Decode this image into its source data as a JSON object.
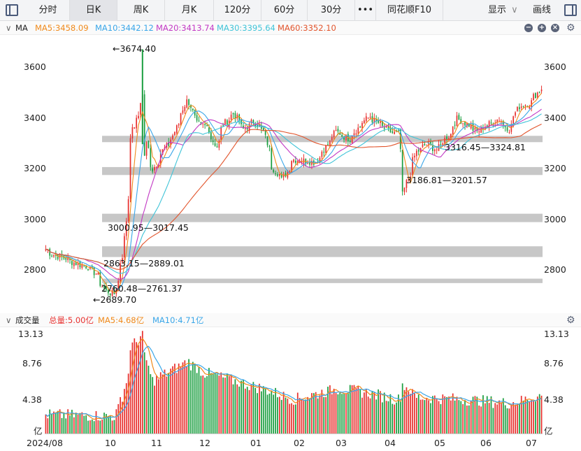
{
  "toolbar": {
    "tabs": [
      "分时",
      "日K",
      "周K",
      "月K",
      "120分",
      "60分",
      "30分",
      "•••",
      "同花顺F10"
    ],
    "active_tab": "日K",
    "display_label": "显示",
    "draw_label": "画线"
  },
  "ma_header": {
    "name": "MA",
    "ma5": "MA5:3458.09",
    "ma10": "MA10:3442.12",
    "ma20": "MA20:3413.74",
    "ma30": "MA30:3395.64",
    "ma60": "MA60:3352.10"
  },
  "vol_header": {
    "name": "成交量",
    "total": "总量:5.00亿",
    "ma5": "MA5:4.68亿",
    "ma10": "MA10:4.71亿"
  },
  "price_axis": {
    "ticks": [
      "3600",
      "3400",
      "3200",
      "3000",
      "2800"
    ]
  },
  "volume_axis": {
    "ticks": [
      "13.13",
      "8.76",
      "4.38",
      "亿"
    ]
  },
  "date_axis": {
    "labels": [
      "2024/08",
      "10",
      "11",
      "12",
      "01",
      "02",
      "03",
      "04",
      "05",
      "06",
      "07"
    ]
  },
  "annotations": {
    "high": "3674.40",
    "low": "2689.70",
    "gap1": "3316.45—3324.81",
    "gap2": "3186.81—3201.57",
    "gap3": "3000.95—3017.45",
    "gap4": "2863.15—2889.01",
    "gap5": "2760.48—2761.37"
  },
  "colors": {
    "up": "#e8312f",
    "down": "#1a9e3f",
    "ma5": "#f08a1c",
    "ma10": "#3aa6e8",
    "ma20": "#c238c4",
    "ma30": "#40c4d8",
    "ma60": "#e2552d",
    "vol_total": "#e8312f",
    "gap_band": "#c7c7c7"
  },
  "chart_data": [
    {
      "type": "candlestick",
      "title": "",
      "ylim": [
        2650,
        3700
      ],
      "gaps": [
        [
          3316.45,
          3324.81
        ],
        [
          3186.81,
          3201.57
        ],
        [
          3000.95,
          3017.45
        ],
        [
          2863.15,
          2889.01
        ],
        [
          2760.48,
          2761.37
        ]
      ],
      "high_point": 3674.4,
      "low_point": 2689.7,
      "moving_averages_last": {
        "MA5": 3458.09,
        "MA10": 3442.12,
        "MA20": 3413.74,
        "MA30": 3395.64,
        "MA60": 3352.1
      },
      "close_anchors": [
        [
          "2024-08-01",
          2886
        ],
        [
          "2024-08-08",
          2860
        ],
        [
          "2024-08-15",
          2850
        ],
        [
          "2024-08-22",
          2830
        ],
        [
          "2024-08-29",
          2820
        ],
        [
          "2024-09-05",
          2790
        ],
        [
          "2024-09-12",
          2720
        ],
        [
          "2024-09-18",
          2710
        ],
        [
          "2024-09-24",
          2860
        ],
        [
          "2024-09-26",
          3000
        ],
        [
          "2024-09-27",
          3087
        ],
        [
          "2024-09-30",
          3336
        ],
        [
          "2024-10-08",
          3489
        ],
        [
          "2024-10-09",
          3258
        ],
        [
          "2024-10-10",
          3301
        ],
        [
          "2024-10-15",
          3200
        ],
        [
          "2024-10-21",
          3268
        ],
        [
          "2024-10-28",
          3320
        ],
        [
          "2024-11-07",
          3470
        ],
        [
          "2024-11-11",
          3450
        ],
        [
          "2024-11-14",
          3380
        ],
        [
          "2024-11-21",
          3370
        ],
        [
          "2024-11-28",
          3290
        ],
        [
          "2024-12-03",
          3380
        ],
        [
          "2024-12-10",
          3420
        ],
        [
          "2024-12-17",
          3360
        ],
        [
          "2024-12-24",
          3390
        ],
        [
          "2024-12-31",
          3350
        ],
        [
          "2025-01-06",
          3210
        ],
        [
          "2025-01-13",
          3160
        ],
        [
          "2025-01-20",
          3240
        ],
        [
          "2025-02-05",
          3230
        ],
        [
          "2025-02-12",
          3290
        ],
        [
          "2025-02-19",
          3350
        ],
        [
          "2025-02-28",
          3320
        ],
        [
          "2025-03-07",
          3370
        ],
        [
          "2025-03-14",
          3410
        ],
        [
          "2025-03-21",
          3380
        ],
        [
          "2025-03-28",
          3350
        ],
        [
          "2025-04-03",
          3340
        ],
        [
          "2025-04-07",
          3100
        ],
        [
          "2025-04-09",
          3150
        ],
        [
          "2025-04-16",
          3270
        ],
        [
          "2025-04-23",
          3300
        ],
        [
          "2025-04-30",
          3280
        ],
        [
          "2025-05-09",
          3340
        ],
        [
          "2025-05-14",
          3400
        ],
        [
          "2025-05-21",
          3380
        ],
        [
          "2025-05-28",
          3350
        ],
        [
          "2025-06-05",
          3380
        ],
        [
          "2025-06-12",
          3400
        ],
        [
          "2025-06-19",
          3360
        ],
        [
          "2025-06-26",
          3450
        ],
        [
          "2025-07-03",
          3460
        ],
        [
          "2025-07-10",
          3510
        ],
        [
          "2025-07-11",
          3520
        ]
      ]
    },
    {
      "type": "bar",
      "title": "成交量",
      "ylabel": "亿",
      "ylim": [
        0,
        13.13
      ],
      "ticks": [
        4.38,
        8.76,
        13.13
      ],
      "last": {
        "total": 5.0,
        "MA5": 4.68,
        "MA10": 4.71
      },
      "volume_anchors": [
        [
          "2024-08-01",
          2.5
        ],
        [
          "2024-09-18",
          2.3
        ],
        [
          "2024-09-24",
          5.0
        ],
        [
          "2024-09-27",
          7.8
        ],
        [
          "2024-09-30",
          11.5
        ],
        [
          "2024-10-08",
          13.13
        ],
        [
          "2024-10-09",
          10.0
        ],
        [
          "2024-10-15",
          7.0
        ],
        [
          "2024-11-08",
          9.5
        ],
        [
          "2024-11-20",
          8.0
        ],
        [
          "2024-12-10",
          7.0
        ],
        [
          "2025-01-06",
          5.5
        ],
        [
          "2025-01-20",
          4.5
        ],
        [
          "2025-02-20",
          5.9
        ],
        [
          "2025-03-10",
          5.5
        ],
        [
          "2025-04-03",
          4.5
        ],
        [
          "2025-04-07",
          6.5
        ],
        [
          "2025-04-16",
          4.8
        ],
        [
          "2025-05-20",
          4.5
        ],
        [
          "2025-06-20",
          4.0
        ],
        [
          "2025-07-11",
          5.0
        ]
      ]
    }
  ]
}
